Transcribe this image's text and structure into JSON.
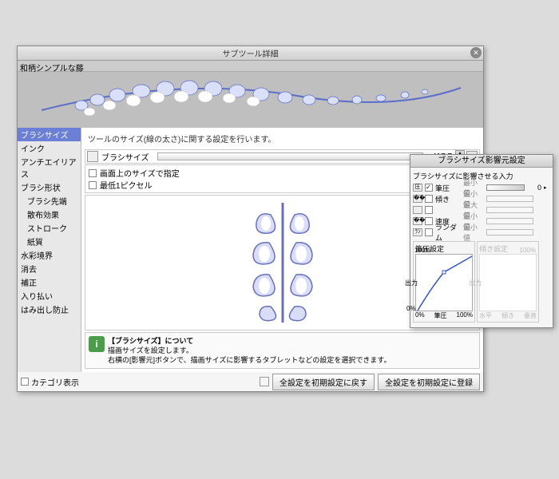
{
  "main": {
    "title": "サブツール詳細",
    "tool_name": "和柄シンプルな藤",
    "sidebar": {
      "items": [
        {
          "label": "ブラシサイズ",
          "sel": true
        },
        {
          "label": "インク"
        },
        {
          "label": "アンチエイリアス"
        },
        {
          "label": "ブラシ形状"
        },
        {
          "label": "ブラシ先端",
          "sub": true
        },
        {
          "label": "散布効果",
          "sub": true
        },
        {
          "label": "ストローク",
          "sub": true
        },
        {
          "label": "紙質",
          "sub": true
        },
        {
          "label": "水彩境界"
        },
        {
          "label": "消去"
        },
        {
          "label": "補正"
        },
        {
          "label": "入り払い"
        },
        {
          "label": "はみ出し防止"
        }
      ]
    },
    "content": {
      "desc": "ツールのサイズ(線の太さ)に関する設定を行います。",
      "param_label": "ブラシサイズ",
      "param_value": "417.7",
      "chk1_label": "画面上のサイズで指定",
      "chk2_label": "最低1ピクセル",
      "info_title": "【ブラシサイズ】について",
      "info_line1": "描画サイズを設定します。",
      "info_line2": "右横の[影響元]ボタンで、描画サイズに影響するタブレットなどの設定を選択できます。"
    },
    "footer": {
      "category_label": "カテゴリ表示",
      "btn_reset": "全設定を初期設定に戻す",
      "btn_save": "全設定を初期設定に登録"
    }
  },
  "popup": {
    "title": "ブラシサイズ影響元設定",
    "subtitle": "ブラシサイズに影響させる入力",
    "sources": [
      {
        "tag": "圧",
        "name": "筆圧",
        "checked": true,
        "label": "最小値",
        "value": "0",
        "active": true
      },
      {
        "tag": "��",
        "name": "傾き",
        "label": "最小値"
      },
      {
        "tag": "",
        "name": "",
        "label": "最大値"
      },
      {
        "tag": "��",
        "name": "速度",
        "label": "最小値"
      },
      {
        "tag": "ﾗﾝ",
        "name": "ランダム",
        "label": "最小値"
      }
    ],
    "graph1": {
      "title": "筆圧設定",
      "ylabel": "出力",
      "yhi": "100%",
      "ylo": "0%",
      "xlo": "0%",
      "xmid": "筆圧",
      "xhi": "100%"
    },
    "graph2": {
      "title": "傾き設定",
      "ylabel": "出力",
      "yhi": "100%",
      "xlo": "水平",
      "xmid": "傾き",
      "xhi": "垂直"
    }
  },
  "colors": {
    "accent": "#6b7fd6",
    "brush_light": "#dbe0fa",
    "brush_dark": "#5b6fc9"
  }
}
